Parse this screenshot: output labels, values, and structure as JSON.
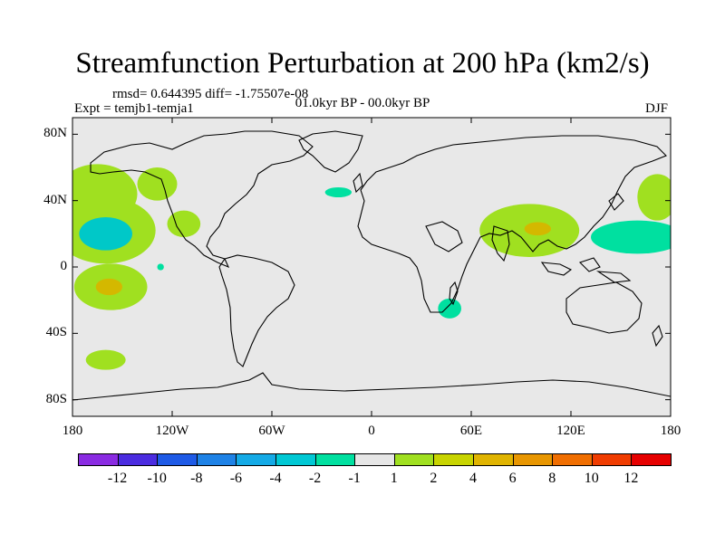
{
  "title": "Streamfunction Perturbation at 200 hPa (km2/s)",
  "stats_line": "rmsd= 0.644395 diff= -1.75507e-08",
  "period": "01.0kyr BP - 00.0kyr BP",
  "experiment": "Expt = temjb1-temja1",
  "season": "DJF",
  "colors": {
    "background": "#e8e8e8",
    "land_outline": "#000000",
    "neg1": "#00e0a0",
    "neg2": "#00c8c8",
    "pos1": "#a0e020",
    "pos2": "#d4b800",
    "pos3": "#e0a000"
  },
  "chart_data": {
    "type": "filled-contour-map",
    "projection": "cylindrical equidistant",
    "lon_range": [
      -180,
      180
    ],
    "lat_range": [
      -90,
      90
    ],
    "lat_ticks": [
      "80N",
      "40N",
      "0",
      "40S",
      "80S"
    ],
    "lon_ticks": [
      "180",
      "120W",
      "60W",
      "0",
      "60E",
      "120E",
      "180"
    ],
    "colorbar": {
      "levels": [
        "-12",
        "-10",
        "-8",
        "-6",
        "-4",
        "-2",
        "-1",
        "1",
        "2",
        "4",
        "6",
        "8",
        "10",
        "12"
      ],
      "colors": [
        "#8a2be2",
        "#4b2ce0",
        "#1e5ae6",
        "#1e82e6",
        "#14aae6",
        "#00c8d4",
        "#00e0a0",
        "#e6e6e6",
        "#a0e020",
        "#c8d400",
        "#e0b400",
        "#e89600",
        "#f06e00",
        "#f03c00",
        "#e60000"
      ]
    },
    "anomaly_regions": [
      {
        "lon": -165,
        "lat": 44,
        "rlon": 24,
        "rlat": 18,
        "value": 2
      },
      {
        "lon": -160,
        "lat": 22,
        "rlon": 30,
        "rlat": 20,
        "value": 2
      },
      {
        "lon": -160,
        "lat": 20,
        "rlon": 16,
        "rlat": 10,
        "value": -2
      },
      {
        "lon": -157,
        "lat": -12,
        "rlon": 22,
        "rlat": 14,
        "value": 2
      },
      {
        "lon": -158,
        "lat": -12,
        "rlon": 8,
        "rlat": 5,
        "value": 4
      },
      {
        "lon": -160,
        "lat": -56,
        "rlon": 12,
        "rlat": 6,
        "value": 2
      },
      {
        "lon": -129,
        "lat": 50,
        "rlon": 12,
        "rlat": 10,
        "value": 2
      },
      {
        "lon": -113,
        "lat": 26,
        "rlon": 10,
        "rlat": 8,
        "value": 2
      },
      {
        "lon": -127,
        "lat": 0,
        "rlon": 2,
        "rlat": 2,
        "value": -1
      },
      {
        "lon": -20,
        "lat": 45,
        "rlon": 8,
        "rlat": 3,
        "value": -1
      },
      {
        "lon": 47,
        "lat": -25,
        "rlon": 7,
        "rlat": 6,
        "value": -1
      },
      {
        "lon": 95,
        "lat": 22,
        "rlon": 30,
        "rlat": 16,
        "value": 2
      },
      {
        "lon": 100,
        "lat": 23,
        "rlon": 8,
        "rlat": 4,
        "value": 4
      },
      {
        "lon": 160,
        "lat": 18,
        "rlon": 28,
        "rlat": 10,
        "value": -1
      },
      {
        "lon": 172,
        "lat": 42,
        "rlon": 12,
        "rlat": 14,
        "value": 2
      }
    ]
  }
}
